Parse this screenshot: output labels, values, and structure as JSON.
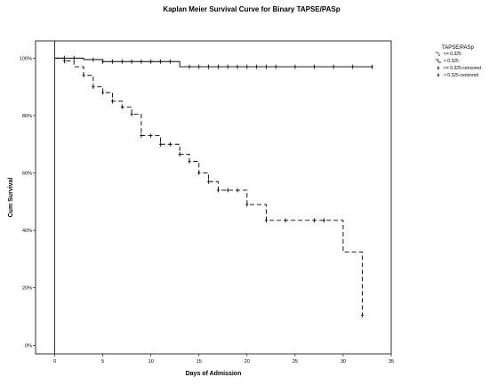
{
  "chart_data": {
    "type": "line",
    "title": "Kaplan Meier Survival Curve for Binary TAPSE/PASp",
    "xlabel": "Days of Admission",
    "ylabel": "Cum Survival",
    "xlim": [
      -2,
      35
    ],
    "ylim": [
      -0.03,
      1.06
    ],
    "x_ticks": [
      0,
      5,
      10,
      15,
      20,
      25,
      30,
      35
    ],
    "x_tick_labels": [
      "0",
      "5",
      "10",
      "15",
      "20",
      "25",
      "30",
      "35"
    ],
    "y_ticks": [
      0,
      0.2,
      0.4,
      0.6,
      0.8,
      1.0
    ],
    "y_tick_labels": [
      "0%",
      "20%",
      "40%",
      "60%",
      "80%",
      "100%"
    ],
    "grid": false,
    "reference_line_x": 0,
    "legend": {
      "title": "TAPSE/PASp",
      "placement": "right",
      "entries": [
        "<= 0.325",
        "> 0.325",
        "<= 0.325-censored",
        "> 0.325-censored"
      ]
    },
    "series": [
      {
        "name": "<= 0.325",
        "style": "dashed",
        "color": "#000000",
        "steps": [
          [
            0,
            1.0
          ],
          [
            1,
            0.99
          ],
          [
            2,
            0.97
          ],
          [
            3,
            0.94
          ],
          [
            4,
            0.9
          ],
          [
            5,
            0.88
          ],
          [
            6,
            0.85
          ],
          [
            7,
            0.83
          ],
          [
            8,
            0.805
          ],
          [
            9,
            0.73
          ],
          [
            11,
            0.7
          ],
          [
            13,
            0.665
          ],
          [
            14,
            0.64
          ],
          [
            15,
            0.6
          ],
          [
            16,
            0.57
          ],
          [
            17,
            0.54
          ],
          [
            20,
            0.49
          ],
          [
            22,
            0.435
          ],
          [
            30,
            0.325
          ],
          [
            32,
            0.105
          ]
        ],
        "end_x": 32,
        "censored": [
          [
            1,
            0.99
          ],
          [
            3,
            0.94
          ],
          [
            4,
            0.9
          ],
          [
            5,
            0.88
          ],
          [
            6,
            0.85
          ],
          [
            7,
            0.83
          ],
          [
            8,
            0.805
          ],
          [
            9,
            0.73
          ],
          [
            10,
            0.73
          ],
          [
            11,
            0.7
          ],
          [
            12,
            0.7
          ],
          [
            13,
            0.665
          ],
          [
            14,
            0.64
          ],
          [
            15,
            0.6
          ],
          [
            16,
            0.57
          ],
          [
            17,
            0.54
          ],
          [
            18,
            0.54
          ],
          [
            19,
            0.54
          ],
          [
            20,
            0.49
          ],
          [
            22,
            0.435
          ],
          [
            24,
            0.435
          ],
          [
            27,
            0.435
          ],
          [
            28,
            0.435
          ],
          [
            32,
            0.105
          ]
        ]
      },
      {
        "name": "> 0.325",
        "style": "solid",
        "color": "#000000",
        "steps": [
          [
            0,
            1.0
          ],
          [
            3,
            0.995
          ],
          [
            5,
            0.988
          ],
          [
            13,
            0.97
          ]
        ],
        "end_x": 33,
        "censored": [
          [
            1,
            1.0
          ],
          [
            2,
            1.0
          ],
          [
            4,
            0.995
          ],
          [
            5,
            0.988
          ],
          [
            6,
            0.988
          ],
          [
            7,
            0.988
          ],
          [
            8,
            0.988
          ],
          [
            9,
            0.988
          ],
          [
            10,
            0.988
          ],
          [
            11,
            0.988
          ],
          [
            12,
            0.988
          ],
          [
            14,
            0.97
          ],
          [
            15,
            0.97
          ],
          [
            16,
            0.97
          ],
          [
            17,
            0.97
          ],
          [
            18,
            0.97
          ],
          [
            19,
            0.97
          ],
          [
            20,
            0.97
          ],
          [
            21,
            0.97
          ],
          [
            22,
            0.97
          ],
          [
            23,
            0.97
          ],
          [
            25,
            0.97
          ],
          [
            27,
            0.97
          ],
          [
            29,
            0.97
          ],
          [
            31,
            0.97
          ],
          [
            33,
            0.97
          ]
        ]
      }
    ]
  }
}
